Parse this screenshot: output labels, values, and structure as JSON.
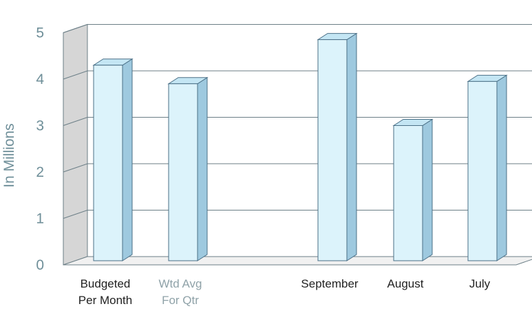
{
  "chart_data": {
    "type": "bar",
    "style": "3d-column",
    "ylabel": "In Millions",
    "xlabel": "",
    "title": "",
    "ylim": [
      0,
      5
    ],
    "yticks": [
      "0",
      "1",
      "2",
      "3",
      "4",
      "5"
    ],
    "categories": [
      {
        "lines": [
          "Budgeted",
          "Per Month"
        ],
        "muted": false
      },
      {
        "lines": [
          "Wtd  Avg",
          "For Qtr"
        ],
        "muted": true
      },
      {
        "lines": [
          "September"
        ],
        "muted": false
      },
      {
        "lines": [
          "August"
        ],
        "muted": false
      },
      {
        "lines": [
          "July"
        ],
        "muted": false
      }
    ],
    "values": [
      4.3,
      3.9,
      4.85,
      3.0,
      3.95
    ],
    "grid": true,
    "legend": "none",
    "colors": {
      "bar_front": "#dcf3fb",
      "bar_side": "#9ec9df",
      "bar_top": "#c4e6f4",
      "bar_outline": "#4a6f86",
      "axis_text": "#6f8f99",
      "category_text": "#222222",
      "muted_category_text": "#8fa2a8",
      "grid_line": "#6b7e86",
      "back_wall": "#ffffff",
      "side_wall": "#d6d6d6",
      "floor": "#f1f1f1"
    }
  }
}
